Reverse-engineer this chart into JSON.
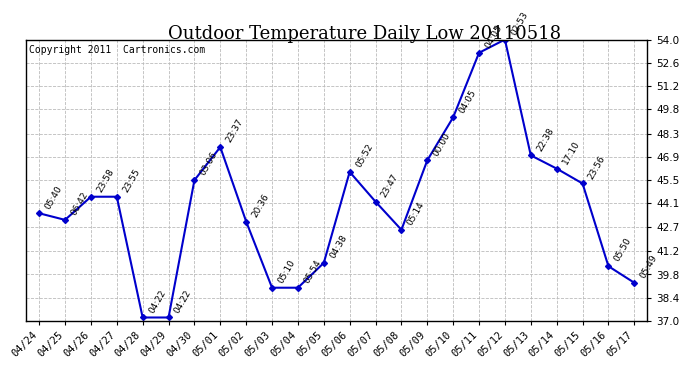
{
  "title": "Outdoor Temperature Daily Low 20110518",
  "copyright_text": "Copyright 2011  Cartronics.com",
  "dates": [
    "04/24",
    "04/25",
    "04/26",
    "04/27",
    "04/28",
    "04/29",
    "04/30",
    "05/01",
    "05/02",
    "05/03",
    "05/04",
    "05/05",
    "05/06",
    "05/07",
    "05/08",
    "05/09",
    "05/10",
    "05/11",
    "05/12",
    "05/13",
    "05/14",
    "05/15",
    "05/16",
    "05/17"
  ],
  "temperatures": [
    43.5,
    43.1,
    44.5,
    44.5,
    37.2,
    37.2,
    45.5,
    47.5,
    43.0,
    39.0,
    39.0,
    40.5,
    46.0,
    44.2,
    42.5,
    46.7,
    49.3,
    53.2,
    54.0,
    47.0,
    46.2,
    45.3,
    40.3,
    39.3
  ],
  "time_labels": [
    "05:40",
    "06:42",
    "23:58",
    "23:55",
    "04:22",
    "04:22",
    "03:06",
    "23:37",
    "20:36",
    "05:10",
    "05:54",
    "04:38",
    "05:52",
    "23:47",
    "05:14",
    "00:00",
    "04:05",
    "04:05",
    "02:53",
    "22:38",
    "17:10",
    "23:56",
    "05:50",
    "05:49"
  ],
  "ylim": [
    37.0,
    54.0
  ],
  "yticks": [
    37.0,
    38.4,
    39.8,
    41.2,
    42.7,
    44.1,
    45.5,
    46.9,
    48.3,
    49.8,
    51.2,
    52.6,
    54.0
  ],
  "line_color": "#0000cc",
  "marker_color": "#0000cc",
  "background_color": "#ffffff",
  "grid_color": "#bbbbbb",
  "title_fontsize": 13,
  "tick_fontsize": 7.5,
  "annotation_fontsize": 6.5,
  "copyright_fontsize": 7
}
